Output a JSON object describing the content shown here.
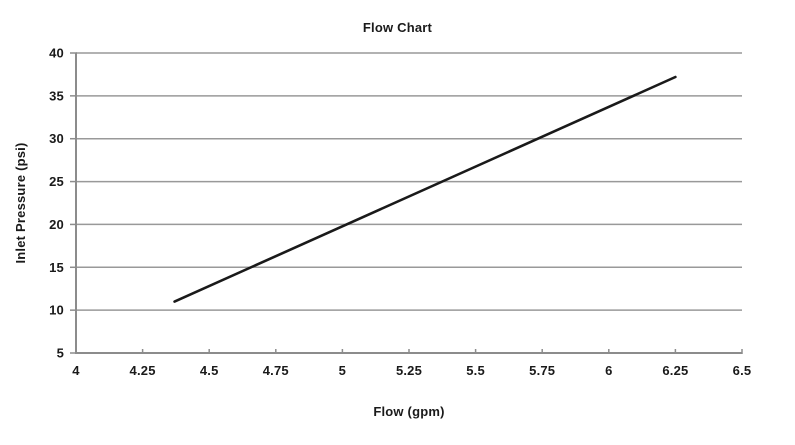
{
  "chart_data": {
    "type": "line",
    "title": "Flow Chart",
    "xlabel": "Flow (gpm)",
    "ylabel": "Inlet Pressure (psi)",
    "xlim": [
      4,
      6.5
    ],
    "ylim": [
      5,
      40
    ],
    "x_tick_labels": [
      "4",
      "4.25",
      "4.5",
      "4.75",
      "5",
      "5.25",
      "5.5",
      "5.75",
      "6",
      "6.25",
      "6.5"
    ],
    "y_tick_labels": [
      "5",
      "10",
      "15",
      "20",
      "25",
      "30",
      "35",
      "40"
    ],
    "grid": "horizontal-only",
    "legend": "none",
    "series": [
      {
        "points": [
          [
            4.37,
            11.0
          ],
          [
            6.25,
            37.2
          ]
        ]
      }
    ],
    "colors": {
      "line": "#1a1a1a",
      "grid": "#999999",
      "axis": "#8c8c8c",
      "text": "#1a1a1a",
      "background": "#ffffff"
    }
  }
}
